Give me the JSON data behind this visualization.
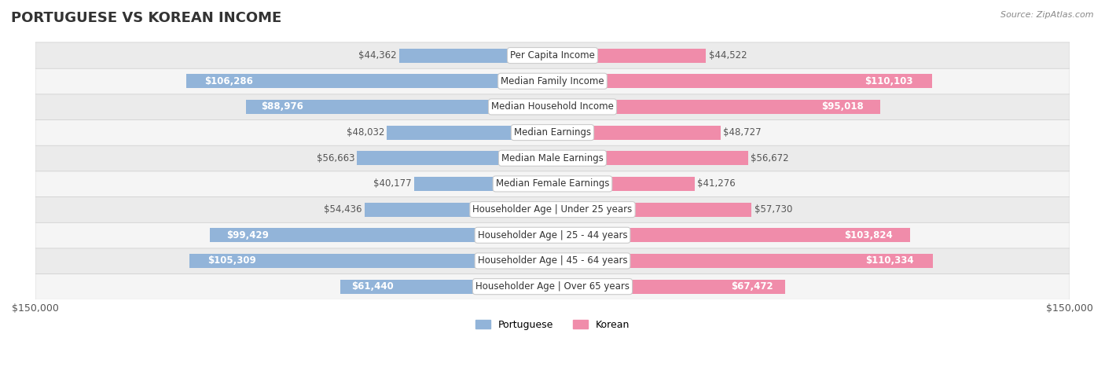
{
  "title": "PORTUGUESE VS KOREAN INCOME",
  "source": "Source: ZipAtlas.com",
  "categories": [
    "Per Capita Income",
    "Median Family Income",
    "Median Household Income",
    "Median Earnings",
    "Median Male Earnings",
    "Median Female Earnings",
    "Householder Age | Under 25 years",
    "Householder Age | 25 - 44 years",
    "Householder Age | 45 - 64 years",
    "Householder Age | Over 65 years"
  ],
  "portuguese_values": [
    44362,
    106286,
    88976,
    48032,
    56663,
    40177,
    54436,
    99429,
    105309,
    61440
  ],
  "korean_values": [
    44522,
    110103,
    95018,
    48727,
    56672,
    41276,
    57730,
    103824,
    110334,
    67472
  ],
  "portuguese_labels": [
    "$44,362",
    "$106,286",
    "$88,976",
    "$48,032",
    "$56,663",
    "$40,177",
    "$54,436",
    "$99,429",
    "$105,309",
    "$61,440"
  ],
  "korean_labels": [
    "$44,522",
    "$110,103",
    "$95,018",
    "$48,727",
    "$56,672",
    "$41,276",
    "$57,730",
    "$103,824",
    "$110,334",
    "$67,472"
  ],
  "max_value": 150000,
  "portuguese_color": "#92b4d9",
  "korean_color": "#f08caa",
  "portuguese_color_dark": "#5b8ec4",
  "korean_color_dark": "#e8607e",
  "bar_height": 0.55,
  "row_bg_color": "#f0f0f0",
  "row_bg_alt": "#e8e8e8",
  "title_fontsize": 13,
  "label_fontsize": 8.5,
  "category_fontsize": 8.5,
  "axis_label_fontsize": 9,
  "value_label_threshold": 60000
}
